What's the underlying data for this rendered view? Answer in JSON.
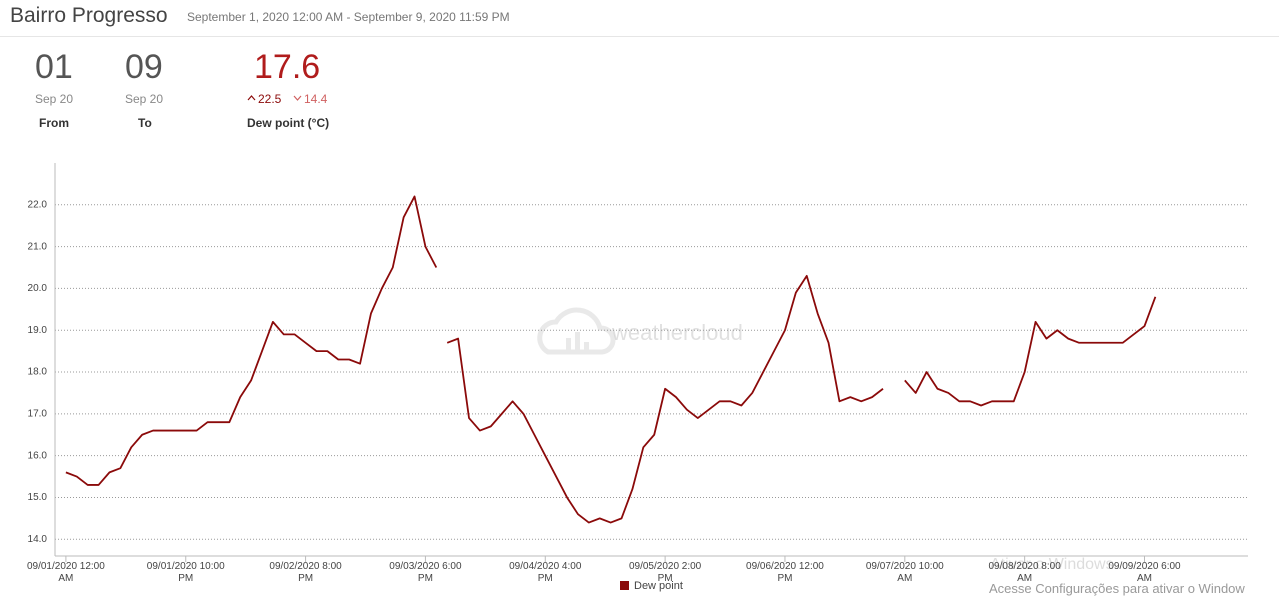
{
  "header": {
    "title": "Bairro Progresso",
    "subtitle": "September 1, 2020 12:00 AM - September 9, 2020 11:59 PM"
  },
  "stats": [
    {
      "value": "01",
      "unit": "Sep 20",
      "label": "From"
    },
    {
      "value": "09",
      "unit": "Sep 20",
      "label": "To"
    },
    {
      "value": "17.6",
      "high": "22.5",
      "low": "14.4",
      "label": "Dew point (°C)"
    }
  ],
  "watermark": "weathercloud",
  "os_notice": {
    "title": "Ativar o Windows",
    "text": "Acesse Configurações para ativar o Window"
  },
  "chart_data": {
    "type": "line",
    "x": [
      "09/01/2020 12:00 AM",
      "09/01/2020 2:00 AM",
      "09/01/2020 4:00 AM",
      "09/01/2020 6:00 AM",
      "09/01/2020 8:00 AM",
      "09/01/2020 10:00 AM",
      "09/01/2020 12:00 PM",
      "09/01/2020 2:00 PM",
      "09/01/2020 4:00 PM",
      "09/01/2020 6:00 PM",
      "09/01/2020 8:00 PM",
      "09/01/2020 10:00 PM",
      "09/02/2020 12:00 AM",
      "09/02/2020 2:00 AM",
      "09/02/2020 4:00 AM",
      "09/02/2020 6:00 AM",
      "09/02/2020 8:00 AM",
      "09/02/2020 10:00 AM",
      "09/02/2020 12:00 PM",
      "09/02/2020 2:00 PM",
      "09/02/2020 4:00 PM",
      "09/02/2020 6:00 PM",
      "09/02/2020 8:00 PM",
      "09/02/2020 10:00 PM",
      "09/03/2020 12:00 AM",
      "09/03/2020 2:00 AM",
      "09/03/2020 4:00 AM",
      "09/03/2020 6:00 AM",
      "09/03/2020 8:00 AM",
      "09/03/2020 10:00 AM",
      "09/03/2020 12:00 PM",
      "09/03/2020 2:00 PM",
      "09/03/2020 4:00 PM",
      "09/03/2020 6:00 PM",
      "09/03/2020 8:00 PM",
      "09/03/2020 9:00 PM",
      "09/03/2020 10:00 PM",
      "09/04/2020 12:00 AM",
      "09/04/2020 2:00 AM",
      "09/04/2020 4:00 AM",
      "09/04/2020 6:00 AM",
      "09/04/2020 8:00 AM",
      "09/04/2020 10:00 AM",
      "09/04/2020 12:00 PM",
      "09/04/2020 2:00 PM",
      "09/04/2020 4:00 PM",
      "09/04/2020 6:00 PM",
      "09/04/2020 8:00 PM",
      "09/04/2020 10:00 PM",
      "09/05/2020 12:00 AM",
      "09/05/2020 2:00 AM",
      "09/05/2020 4:00 AM",
      "09/05/2020 6:00 AM",
      "09/05/2020 8:00 AM",
      "09/05/2020 10:00 AM",
      "09/05/2020 12:00 PM",
      "09/05/2020 2:00 PM",
      "09/05/2020 4:00 PM",
      "09/05/2020 6:00 PM",
      "09/05/2020 8:00 PM",
      "09/05/2020 10:00 PM",
      "09/06/2020 12:00 AM",
      "09/06/2020 2:00 AM",
      "09/06/2020 4:00 AM",
      "09/06/2020 6:00 AM",
      "09/06/2020 8:00 AM",
      "09/06/2020 10:00 AM",
      "09/06/2020 12:00 PM",
      "09/06/2020 2:00 PM",
      "09/06/2020 4:00 PM",
      "09/06/2020 6:00 PM",
      "09/06/2020 8:00 PM",
      "09/06/2020 10:00 PM",
      "09/07/2020 12:00 AM",
      "09/07/2020 2:00 AM",
      "09/07/2020 4:00 AM",
      "09/07/2020 6:00 AM",
      "09/07/2020 8:00 AM",
      "09/07/2020 10:00 AM",
      "09/07/2020 12:00 PM",
      "09/07/2020 2:00 PM",
      "09/07/2020 4:00 PM",
      "09/07/2020 6:00 PM",
      "09/07/2020 8:00 PM",
      "09/07/2020 10:00 PM",
      "09/08/2020 12:00 AM",
      "09/08/2020 2:00 AM",
      "09/08/2020 4:00 AM",
      "09/08/2020 6:00 AM",
      "09/08/2020 8:00 AM",
      "09/08/2020 10:00 AM",
      "09/08/2020 12:00 PM",
      "09/08/2020 2:00 PM",
      "09/08/2020 4:00 PM",
      "09/08/2020 6:00 PM",
      "09/08/2020 8:00 PM",
      "09/08/2020 10:00 PM",
      "09/09/2020 12:00 AM",
      "09/09/2020 2:00 AM",
      "09/09/2020 4:00 AM",
      "09/09/2020 6:00 AM",
      "09/09/2020 8:00 AM"
    ],
    "series": [
      {
        "name": "Dew point",
        "color": "#8b0a0a",
        "values": [
          15.6,
          15.5,
          15.3,
          15.3,
          15.6,
          15.7,
          16.2,
          16.5,
          16.6,
          16.6,
          16.6,
          16.6,
          16.6,
          16.8,
          16.8,
          16.8,
          17.4,
          17.8,
          18.5,
          19.2,
          18.9,
          18.9,
          18.7,
          18.5,
          18.5,
          18.3,
          18.3,
          18.2,
          19.4,
          20.0,
          20.5,
          21.7,
          22.2,
          21.0,
          20.5,
          null,
          18.7,
          18.8,
          16.9,
          16.6,
          16.7,
          17.0,
          17.3,
          17.0,
          16.5,
          16.0,
          15.5,
          15.0,
          14.6,
          14.4,
          14.5,
          14.4,
          14.5,
          15.2,
          16.2,
          16.5,
          17.6,
          17.4,
          17.1,
          16.9,
          17.1,
          17.3,
          17.3,
          17.2,
          17.5,
          18.0,
          18.5,
          19.0,
          19.9,
          20.3,
          19.4,
          18.7,
          17.3,
          17.4,
          17.3,
          17.4,
          17.6,
          null,
          17.8,
          17.5,
          18.0,
          17.6,
          17.5,
          17.3,
          17.3,
          17.2,
          17.3,
          17.3,
          17.3,
          18.0,
          19.2,
          18.8,
          19.0,
          18.8,
          18.7,
          18.7,
          18.7,
          18.7,
          18.7,
          18.9,
          19.1,
          19.8
        ]
      }
    ],
    "xlim": [
      "08/31/2020 10:00 PM",
      "09/10/2020 1:00 AM"
    ],
    "xticks": [
      "09/01/2020 12:00 AM",
      "09/01/2020 10:00 PM",
      "09/02/2020 8:00 PM",
      "09/03/2020 6:00 PM",
      "09/04/2020 4:00 PM",
      "09/05/2020 2:00 PM",
      "09/06/2020 12:00 PM",
      "09/07/2020 10:00 AM",
      "09/08/2020 8:00 AM",
      "09/09/2020 6:00 AM"
    ],
    "ylim": [
      13.6,
      23.0
    ],
    "yticks": [
      {
        "value": 14,
        "label": "14.0"
      },
      {
        "value": 15,
        "label": "15.0"
      },
      {
        "value": 16,
        "label": "16.0"
      },
      {
        "value": 17,
        "label": "17.0"
      },
      {
        "value": 18,
        "label": "18.0"
      },
      {
        "value": 19,
        "label": "19.0"
      },
      {
        "value": 20,
        "label": "20.0"
      },
      {
        "value": 21,
        "label": "21.0"
      },
      {
        "value": 22,
        "label": "22.0"
      }
    ],
    "grid": true,
    "legend": "bottom"
  }
}
